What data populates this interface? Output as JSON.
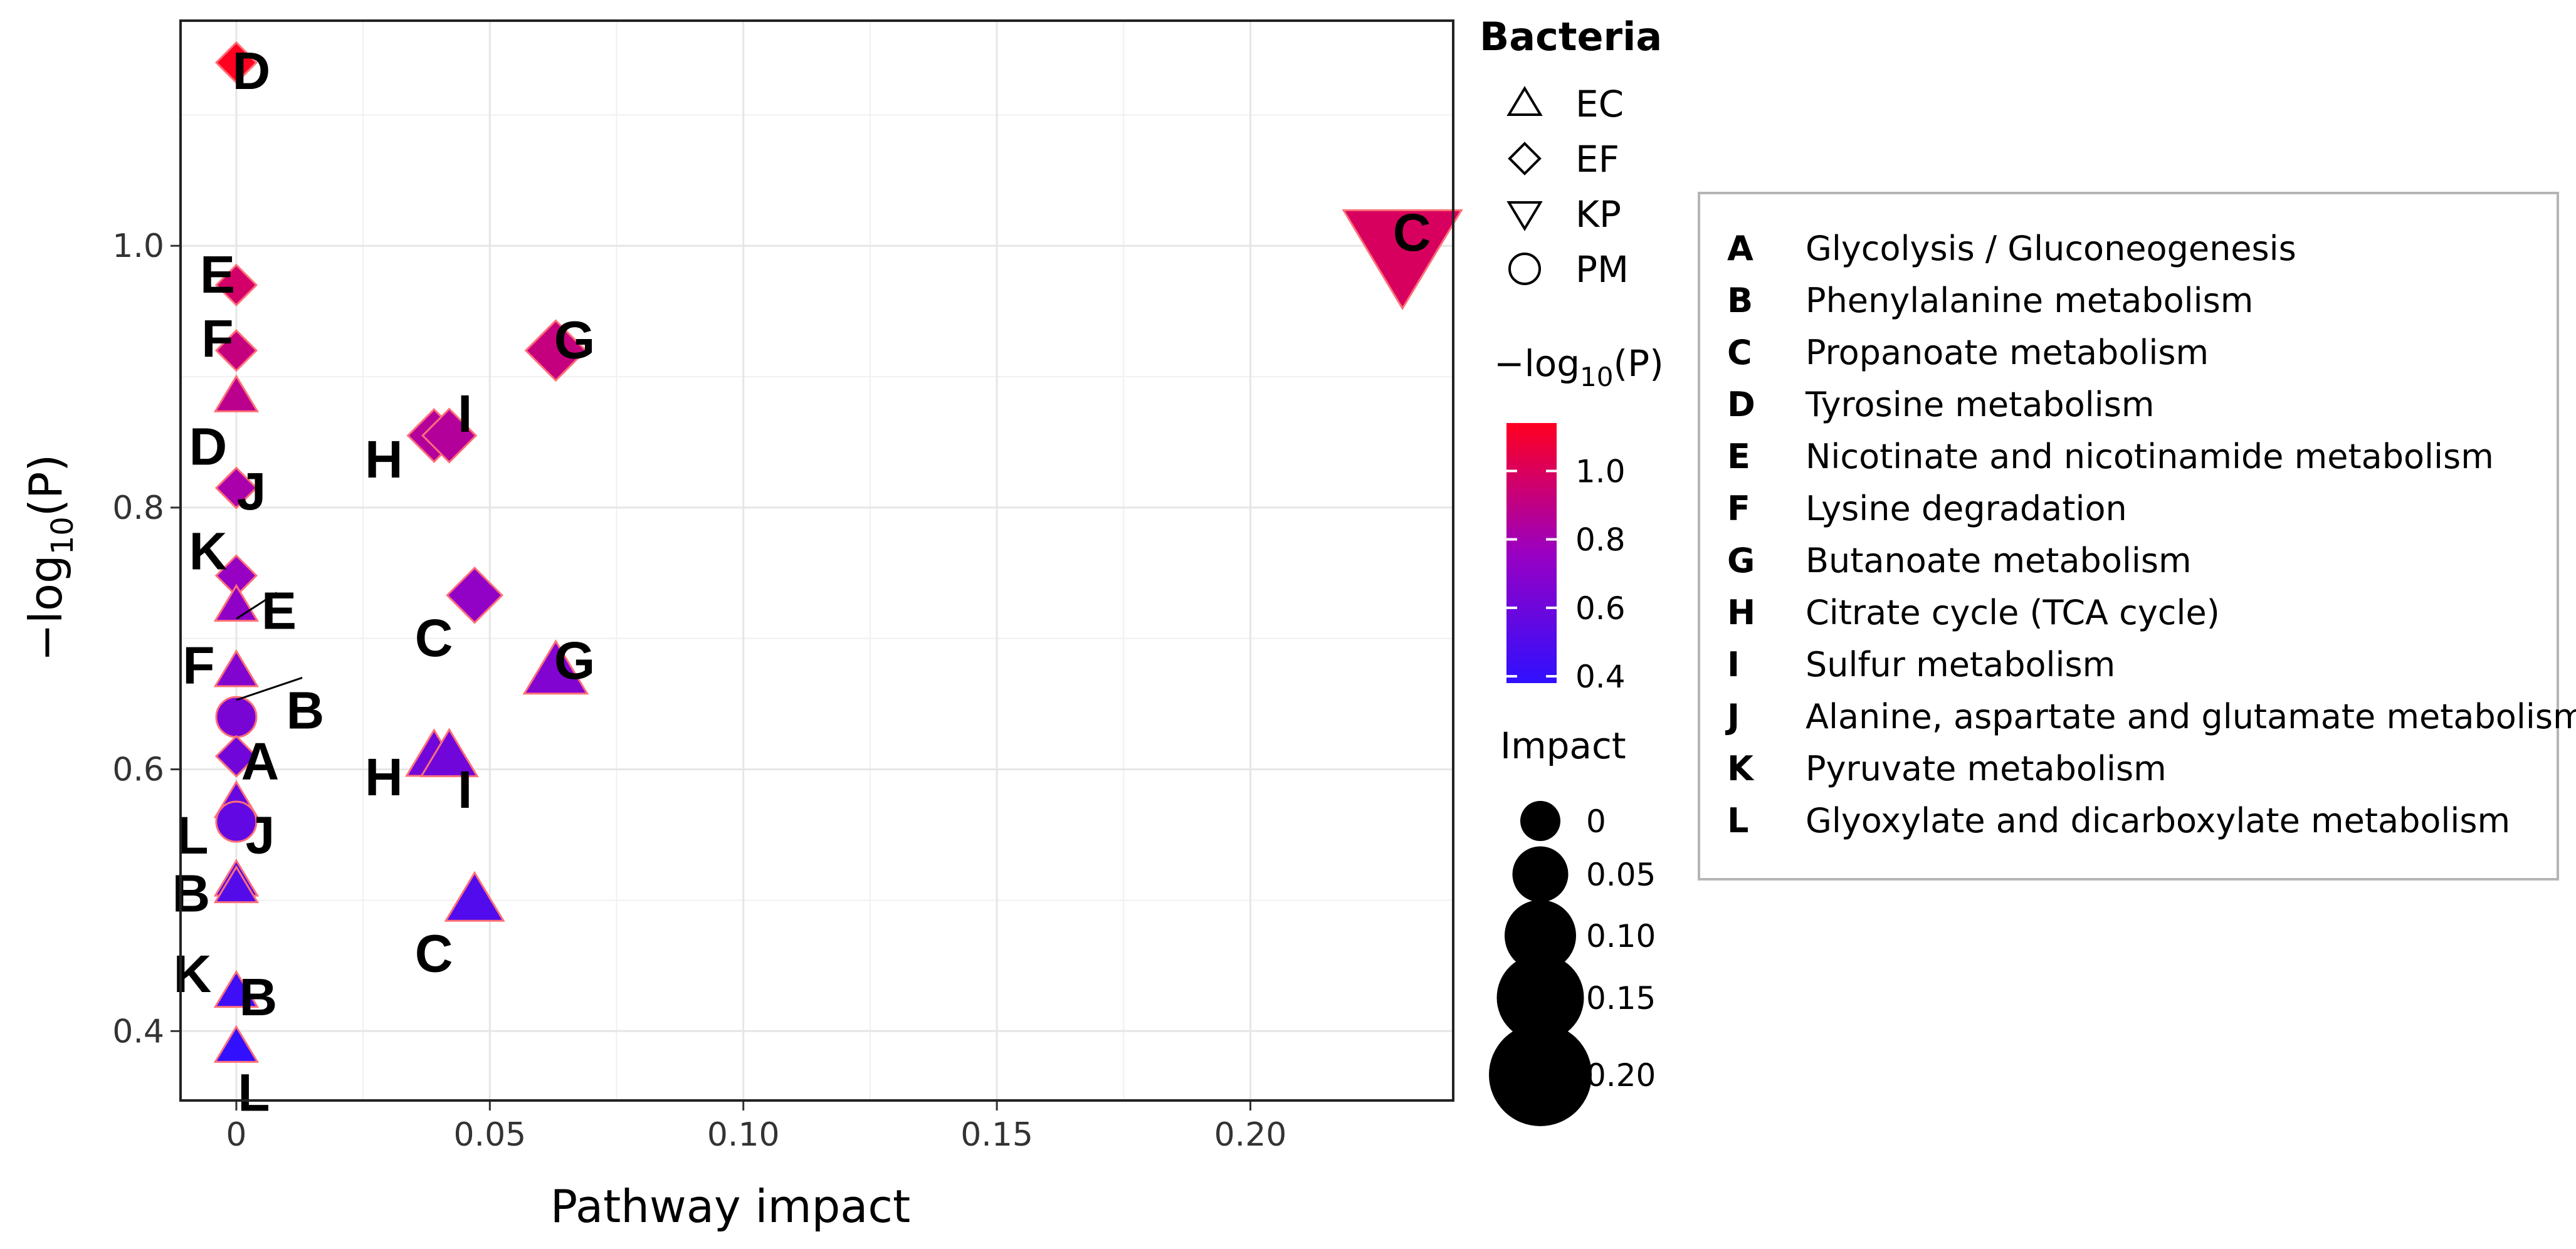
{
  "chart_data": {
    "type": "scatter",
    "xlabel": "Pathway impact",
    "ylabel": "−log10(P)",
    "xlim": [
      -0.011,
      0.24
    ],
    "ylim": [
      0.347,
      1.172
    ],
    "x_ticks": [
      "0",
      "0.05",
      "0.10",
      "0.15",
      "0.20"
    ],
    "y_ticks": [
      "0.4",
      "0.6",
      "0.8",
      "1.0"
    ],
    "grid": true,
    "color_scale": {
      "low": "#3010ff",
      "mid": "#9a00c2",
      "high": "#ff0020",
      "min": 0.38,
      "max": 1.14
    },
    "points": [
      {
        "label": "D",
        "bacteria": "EF",
        "x": 0.0,
        "y": 1.14,
        "impact": 0.0
      },
      {
        "label": "E",
        "bacteria": "EF",
        "x": 0.0,
        "y": 0.97,
        "impact": 0.0
      },
      {
        "label": "F",
        "bacteria": "EF",
        "x": 0.0,
        "y": 0.92,
        "impact": 0.0
      },
      {
        "label": "D",
        "bacteria": "EC",
        "x": 0.0,
        "y": 0.885,
        "impact": 0.0
      },
      {
        "label": "J",
        "bacteria": "EF",
        "x": 0.0,
        "y": 0.815,
        "impact": 0.0
      },
      {
        "label": "K",
        "bacteria": "EF",
        "x": 0.0,
        "y": 0.748,
        "impact": 0.0
      },
      {
        "label": "E",
        "bacteria": "EC",
        "x": 0.0,
        "y": 0.725,
        "impact": 0.0
      },
      {
        "label": "F",
        "bacteria": "EC",
        "x": 0.0,
        "y": 0.675,
        "impact": 0.0
      },
      {
        "label": "B",
        "bacteria": "PM",
        "x": 0.0,
        "y": 0.64,
        "impact": 0.0
      },
      {
        "label": "A",
        "bacteria": "EF",
        "x": 0.0,
        "y": 0.61,
        "impact": 0.0
      },
      {
        "label": "L",
        "bacteria": "EC",
        "x": 0.0,
        "y": 0.575,
        "impact": 0.0
      },
      {
        "label": "J",
        "bacteria": "PM",
        "x": 0.0,
        "y": 0.56,
        "impact": 0.0
      },
      {
        "label": "B",
        "bacteria": "EC",
        "x": 0.0,
        "y": 0.515,
        "impact": 0.0
      },
      {
        "label": "K",
        "bacteria": "EC",
        "x": 0.0,
        "y": 0.51,
        "impact": 0.0
      },
      {
        "label": "B",
        "bacteria": "EC",
        "x": 0.0,
        "y": 0.43,
        "impact": 0.0
      },
      {
        "label": "L",
        "bacteria": "EC",
        "x": 0.0,
        "y": 0.388,
        "impact": 0.0
      },
      {
        "label": "H",
        "bacteria": "EF",
        "x": 0.039,
        "y": 0.855,
        "impact": 0.039
      },
      {
        "label": "I",
        "bacteria": "EF",
        "x": 0.042,
        "y": 0.855,
        "impact": 0.042
      },
      {
        "label": "C",
        "bacteria": "EF",
        "x": 0.047,
        "y": 0.733,
        "impact": 0.047
      },
      {
        "label": "G",
        "bacteria": "EF",
        "x": 0.063,
        "y": 0.92,
        "impact": 0.063
      },
      {
        "label": "H",
        "bacteria": "EC",
        "x": 0.039,
        "y": 0.61,
        "impact": 0.039
      },
      {
        "label": "I",
        "bacteria": "EC",
        "x": 0.042,
        "y": 0.61,
        "impact": 0.042
      },
      {
        "label": "C",
        "bacteria": "EC",
        "x": 0.047,
        "y": 0.5,
        "impact": 0.047
      },
      {
        "label": "G",
        "bacteria": "EC",
        "x": 0.063,
        "y": 0.675,
        "impact": 0.063
      },
      {
        "label": "C",
        "bacteria": "KP",
        "x": 0.23,
        "y": 0.995,
        "impact": 0.23
      }
    ],
    "legend": {
      "bacteria_title": "Bacteria",
      "bacteria": [
        {
          "code": "EC",
          "shape": "triangle-up"
        },
        {
          "code": "EF",
          "shape": "diamond"
        },
        {
          "code": "KP",
          "shape": "triangle-down"
        },
        {
          "code": "PM",
          "shape": "circle"
        }
      ],
      "color_title": "−log10(P)",
      "color_ticks": [
        "1.0",
        "0.8",
        "0.6",
        "0.4"
      ],
      "impact_title": "Impact",
      "impact_sizes": [
        "0",
        "0.05",
        "0.10",
        "0.15",
        "0.20"
      ]
    },
    "pathway_key": [
      {
        "letter": "A",
        "name": "Glycolysis / Gluconeogenesis"
      },
      {
        "letter": "B",
        "name": "Phenylalanine metabolism"
      },
      {
        "letter": "C",
        "name": "Propanoate metabolism"
      },
      {
        "letter": "D",
        "name": "Tyrosine metabolism"
      },
      {
        "letter": "E",
        "name": "Nicotinate and nicotinamide metabolism"
      },
      {
        "letter": "F",
        "name": "Lysine degradation"
      },
      {
        "letter": "G",
        "name": "Butanoate metabolism"
      },
      {
        "letter": "H",
        "name": "Citrate cycle (TCA cycle)"
      },
      {
        "letter": "I",
        "name": "Sulfur metabolism"
      },
      {
        "letter": "J",
        "name": "Alanine, aspartate and glutamate metabolism"
      },
      {
        "letter": "K",
        "name": "Pyruvate metabolism"
      },
      {
        "letter": "L",
        "name": "Glyoxylate and dicarboxylate metabolism"
      }
    ]
  }
}
